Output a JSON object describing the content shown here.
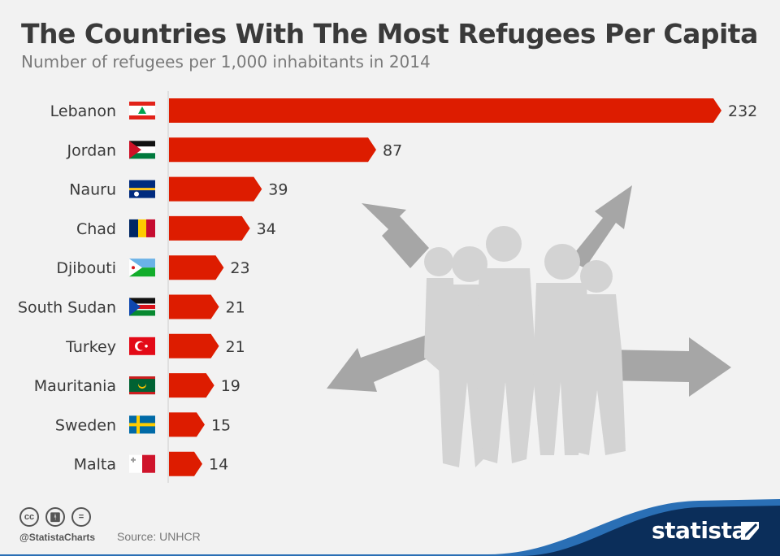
{
  "header": {
    "title": "The Countries With The Most Refugees Per Capita",
    "subtitle": "Number of refugees per 1,000 inhabitants in 2014"
  },
  "footer": {
    "handle": "@StatistaCharts",
    "source": "Source: UNHCR",
    "brand": "statista"
  },
  "colors": {
    "bar": "#dd1c00",
    "background": "#f2f2f2",
    "silhouette": "#d3d3d3",
    "arrows": "#a6a6a6",
    "brand_navy": "#0b2e5a",
    "brand_blue": "#2a6fb5"
  },
  "chart_data": {
    "type": "bar",
    "orientation": "horizontal",
    "title": "The Countries With The Most Refugees Per Capita",
    "subtitle": "Number of refugees per 1,000 inhabitants in 2014",
    "categories": [
      "Lebanon",
      "Jordan",
      "Nauru",
      "Chad",
      "Djibouti",
      "South Sudan",
      "Turkey",
      "Mauritania",
      "Sweden",
      "Malta"
    ],
    "values": [
      232,
      87,
      39,
      34,
      23,
      21,
      21,
      19,
      15,
      14
    ],
    "data_labels": [
      "232",
      "87",
      "39",
      "34",
      "23",
      "21",
      "21",
      "19",
      "15",
      "14"
    ],
    "flags": [
      "lebanon-flag-icon",
      "jordan-flag-icon",
      "nauru-flag-icon",
      "chad-flag-icon",
      "djibouti-flag-icon",
      "south-sudan-flag-icon",
      "turkey-flag-icon",
      "mauritania-flag-icon",
      "sweden-flag-icon",
      "malta-flag-icon"
    ],
    "xlim": [
      0,
      232
    ],
    "grid": false,
    "legend": "none"
  }
}
